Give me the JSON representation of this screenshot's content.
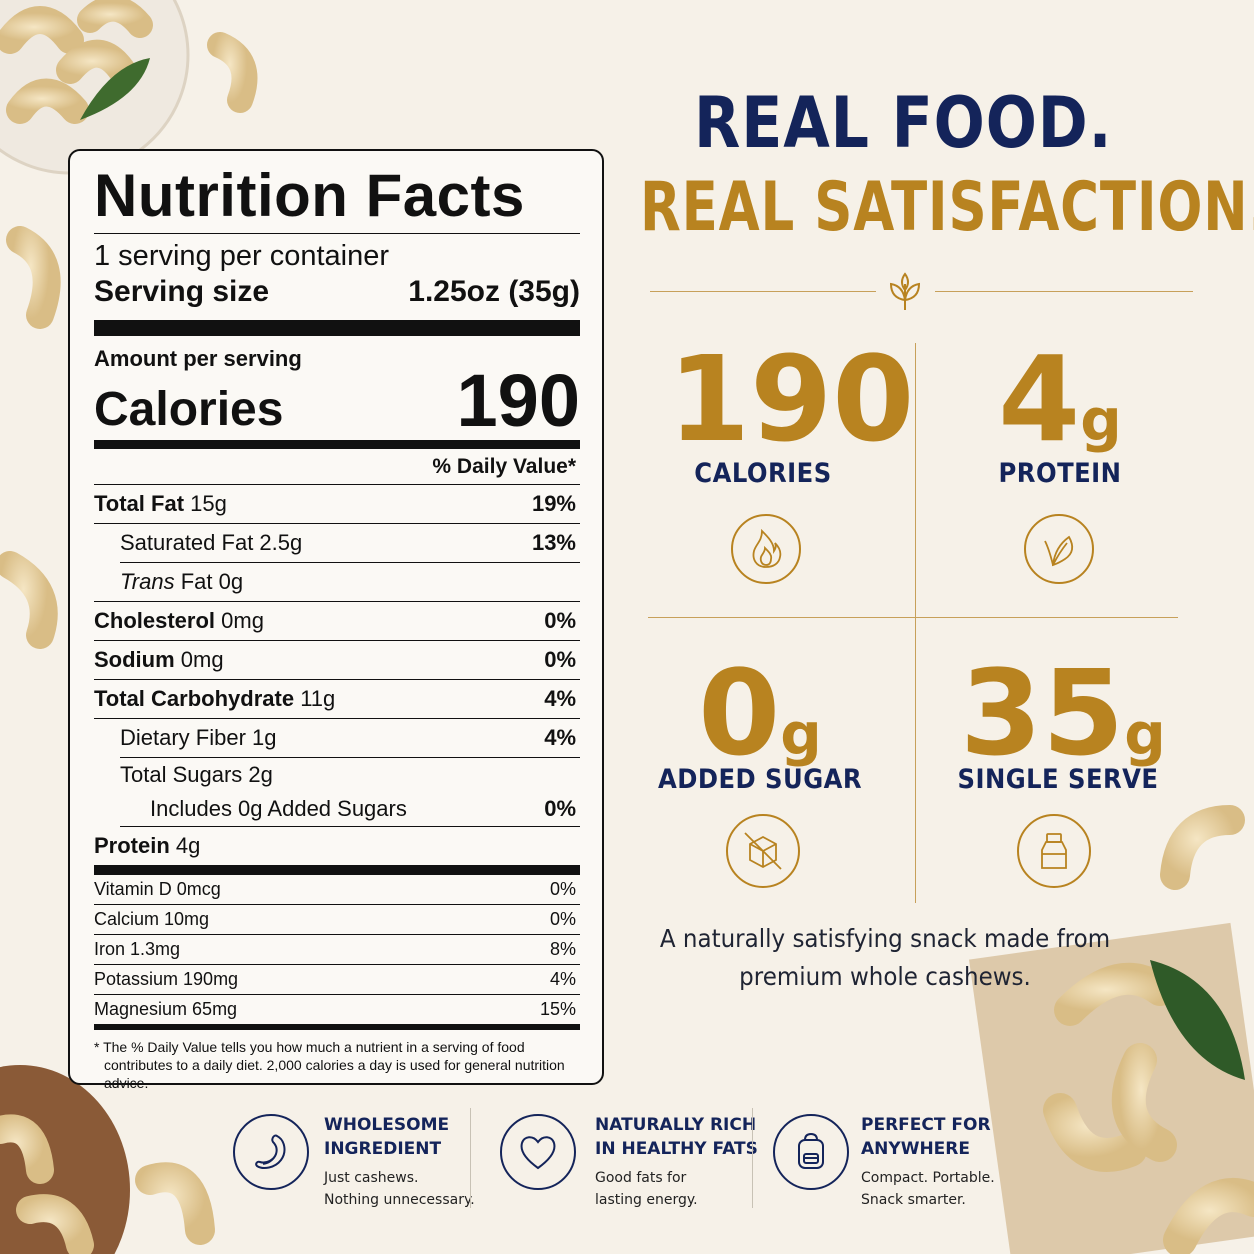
{
  "nutrition": {
    "title": "Nutrition Facts",
    "servings": "1 serving per container",
    "serving_size_label": "Serving size",
    "serving_size_value": "1.25oz (35g)",
    "amount_per_serving": "Amount per serving",
    "calories_label": "Calories",
    "calories_value": "190",
    "dv_header": "% Daily Value*",
    "rows": [
      {
        "label": "Total Fat",
        "amount": "15g",
        "pct": "19%"
      },
      {
        "label": "Saturated Fat 2.5g",
        "pct": "13%"
      },
      {
        "label_italic": "Trans",
        "label_rest": " Fat 0g"
      },
      {
        "label": "Cholesterol",
        "amount": "0mg",
        "pct": "0%"
      },
      {
        "label": "Sodium",
        "amount": "0mg",
        "pct": "0%"
      },
      {
        "label": "Total Carbohydrate",
        "amount": "11g",
        "pct": "4%"
      },
      {
        "label": "Dietary Fiber 1g",
        "pct": "4%"
      },
      {
        "label": "Total Sugars 2g"
      },
      {
        "label": "Includes 0g Added Sugars",
        "pct": "0%"
      },
      {
        "label": "Protein",
        "amount": "4g"
      }
    ],
    "vitamins": [
      {
        "label": "Vitamin D 0mcg",
        "pct": "0%"
      },
      {
        "label": "Calcium 10mg",
        "pct": "0%"
      },
      {
        "label": "Iron 1.3mg",
        "pct": "8%"
      },
      {
        "label": "Potassium 190mg",
        "pct": "4%"
      },
      {
        "label": "Magnesium 65mg",
        "pct": "15%"
      }
    ],
    "footnote": "* The % Daily Value tells you how much a nutrient in a serving of food contributes to a daily diet. 2,000 calories a day is used for general nutrition advice."
  },
  "headline": {
    "line1": "REAL FOOD.",
    "line2": "REAL SATISFACTION."
  },
  "stats": [
    {
      "value": "190",
      "unit": "",
      "label": "CALORIES",
      "icon": "flame-icon"
    },
    {
      "value": "4",
      "unit": "g",
      "label": "PROTEIN",
      "icon": "leaf-icon"
    },
    {
      "value": "0",
      "unit": "g",
      "label": "ADDED SUGAR",
      "icon": "no-sugar-cube-icon"
    },
    {
      "value": "35",
      "unit": "g",
      "label": "SINGLE SERVE",
      "icon": "jar-icon"
    }
  ],
  "tagline": {
    "line1": "A naturally satisfying snack made from",
    "line2": "premium whole cashews."
  },
  "features": [
    {
      "title1": "WHOLESOME",
      "title2": "INGREDIENT",
      "desc1": "Just cashews.",
      "desc2": "Nothing unnecessary.",
      "icon": "cashew-icon"
    },
    {
      "title1": "NATURALLY RICH",
      "title2": "IN HEALTHY FATS",
      "desc1": "Good fats for",
      "desc2": "lasting energy.",
      "icon": "heart-icon"
    },
    {
      "title1": "PERFECT FOR",
      "title2": "ANYWHERE",
      "desc1": "Compact. Portable.",
      "desc2": "Snack smarter.",
      "icon": "backpack-icon"
    }
  ],
  "colors": {
    "background": "#f6f1e8",
    "navy": "#14245a",
    "gold": "#b88320"
  }
}
